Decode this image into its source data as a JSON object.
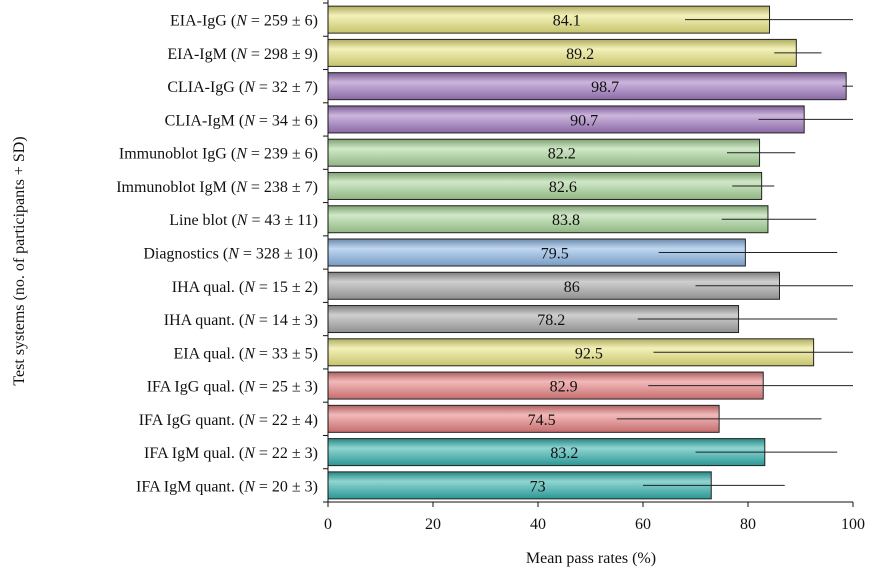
{
  "chart_data": {
    "type": "bar",
    "orientation": "horizontal",
    "title": "",
    "xlabel": "Mean pass rates (%)",
    "ylabel": "Test systems (no. of participants + SD)",
    "xlim": [
      0,
      100
    ],
    "xticks": [
      0,
      20,
      40,
      60,
      80,
      100
    ],
    "grid": false,
    "legend": "none",
    "categories": [
      {
        "pre": "EIA-IgG (",
        "n": "N",
        "post": " = 259 ± 6)"
      },
      {
        "pre": "EIA-IgM (",
        "n": "N",
        "post": " = 298 ± 9)"
      },
      {
        "pre": "CLIA-IgG (",
        "n": "N",
        "post": " = 32 ± 7)"
      },
      {
        "pre": "CLIA-IgM (",
        "n": "N",
        "post": " = 34 ± 6)"
      },
      {
        "pre": "Immunoblot IgG (",
        "n": "N",
        "post": " = 239 ± 6)"
      },
      {
        "pre": "Immunoblot IgM (",
        "n": "N",
        "post": " = 238 ± 7)"
      },
      {
        "pre": "Line  blot (",
        "n": "N",
        "post": " = 43 ± 11)"
      },
      {
        "pre": "Diagnostics (",
        "n": "N",
        "post": " = 328 ± 10)"
      },
      {
        "pre": "IHA qual. (",
        "n": "N",
        "post": " = 15 ± 2)"
      },
      {
        "pre": "IHA quant. (",
        "n": "N",
        "post": " = 14 ± 3)"
      },
      {
        "pre": "EIA qual. (",
        "n": "N",
        "post": " = 33 ± 5)"
      },
      {
        "pre": "IFA IgG qual. (",
        "n": "N",
        "post": " = 25 ± 3)"
      },
      {
        "pre": "IFA IgG quant. (",
        "n": "N",
        "post": " = 22 ± 4)"
      },
      {
        "pre": "IFA IgM qual. (",
        "n": "N",
        "post": " = 22 ± 3)"
      },
      {
        "pre": "IFA IgM quant. (",
        "n": "N",
        "post": " = 20 ± 3)"
      }
    ],
    "values": [
      84.1,
      89.2,
      98.7,
      90.7,
      82.2,
      82.6,
      83.8,
      79.5,
      86,
      78.2,
      92.5,
      82.9,
      74.5,
      83.2,
      73
    ],
    "value_labels": [
      "84.1",
      "89.2",
      "98.7",
      "90.7",
      "82.2",
      "82.6",
      "83.8",
      "79.5",
      "86",
      "78.2",
      "92.5",
      "82.9",
      "74.5",
      "83.2",
      "73"
    ],
    "error_bars": [
      [
        68,
        100
      ],
      [
        85,
        94
      ],
      [
        98,
        100
      ],
      [
        82,
        100
      ],
      [
        76,
        89
      ],
      [
        77,
        85
      ],
      [
        75,
        93
      ],
      [
        63,
        97
      ],
      [
        70,
        100
      ],
      [
        59,
        97
      ],
      [
        62,
        100
      ],
      [
        61,
        100
      ],
      [
        55,
        94
      ],
      [
        70,
        97
      ],
      [
        60,
        87
      ]
    ],
    "bar_colors": [
      "#e9e680",
      "#e9e680",
      "#a27bc2",
      "#a27bc2",
      "#a9d69a",
      "#a9d69a",
      "#a9d69a",
      "#8db6e6",
      "#a8a8a8",
      "#a8a8a8",
      "#e9e680",
      "#e88080",
      "#e88080",
      "#33b2ae",
      "#33b2ae"
    ]
  }
}
